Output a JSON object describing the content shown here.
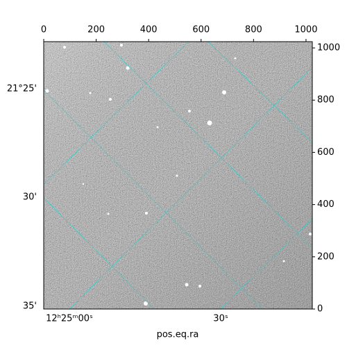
{
  "chart_data": {
    "type": "image",
    "x_label": "pos.eq.ra",
    "xlim": [
      0,
      1024
    ],
    "xticks": [
      0,
      200,
      400,
      600,
      800,
      1000
    ],
    "ylim": [
      0,
      1024
    ],
    "yticks": [
      0,
      200,
      400,
      600,
      800,
      1000
    ],
    "ra_tick_labels": [
      "12ʰ25ᵐ00ˢ",
      "30ˢ"
    ],
    "dec_tick_labels": [
      "21°25'",
      "30'",
      "35'"
    ]
  }
}
